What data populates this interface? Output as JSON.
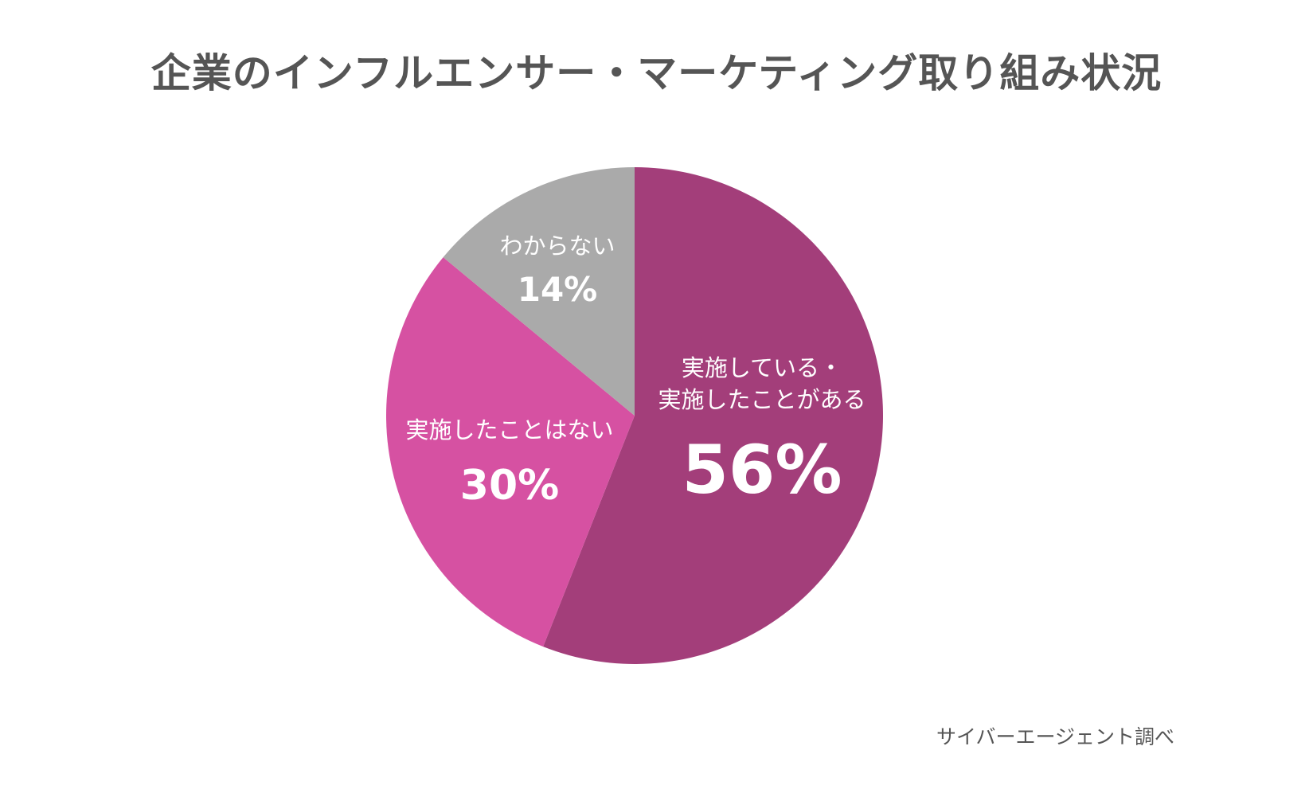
{
  "chart_data": {
    "type": "pie",
    "title": "企業のインフルエンサー・マーケティング取り組み状況",
    "unit": "%",
    "start_angle_deg": 0,
    "direction": "clockwise",
    "slices": [
      {
        "lines": [
          "実施している・",
          "実施したことがある"
        ],
        "value": 56,
        "label": "56%",
        "color": "#a33e7a"
      },
      {
        "lines": [
          "実施したことはない"
        ],
        "value": 30,
        "label": "30%",
        "color": "#d651a2"
      },
      {
        "lines": [
          "わからない"
        ],
        "value": 14,
        "label": "14%",
        "color": "#aaaaaa"
      }
    ],
    "source": "サイバーエージェント調べ"
  }
}
